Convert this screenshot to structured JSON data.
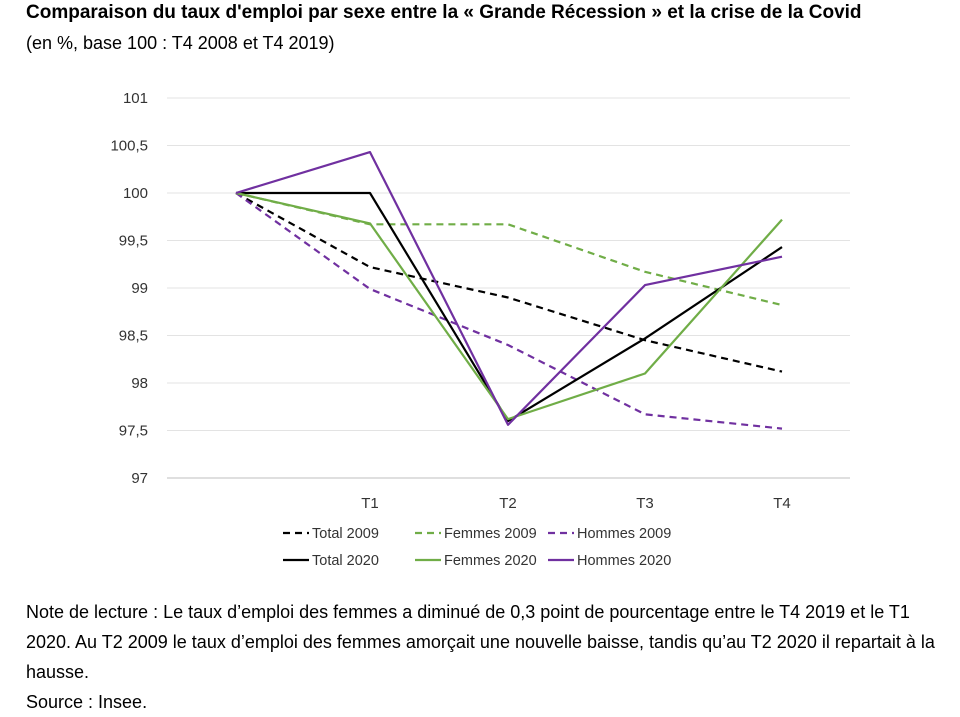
{
  "title": "Comparaison du taux d'emploi par sexe entre la « Grande Récession » et la crise de la Covid",
  "subtitle": "(en %, base 100 : T4 2008 et T4 2019)",
  "note": "Note de lecture : Le taux d’emploi des femmes a diminué de 0,3 point de pourcentage entre le T4 2019 et le T1 2020. Au T2 2009 le taux d’emploi des femmes amorçait une nouvelle baisse, tandis qu’au T2 2020 il repartait à la hausse.",
  "source": "Source : Insee.",
  "chart_data": {
    "type": "line",
    "categories": [
      "",
      "T1",
      "T2",
      "T3",
      "T4"
    ],
    "ylim": [
      97,
      101
    ],
    "yticks": [
      {
        "value": 97,
        "label": "97"
      },
      {
        "value": 97.5,
        "label": "97,5"
      },
      {
        "value": 98,
        "label": "98"
      },
      {
        "value": 98.5,
        "label": "98,5"
      },
      {
        "value": 99,
        "label": "99"
      },
      {
        "value": 99.5,
        "label": "99,5"
      },
      {
        "value": 100,
        "label": "100"
      },
      {
        "value": 100.5,
        "label": "100,5"
      },
      {
        "value": 101,
        "label": "101"
      }
    ],
    "grid": true,
    "legend_position": "bottom",
    "series": [
      {
        "name": "Total 2009",
        "color": "#000000",
        "dashed": true,
        "values": [
          100,
          99.22,
          98.9,
          98.45,
          98.12
        ]
      },
      {
        "name": "Femmes 2009",
        "color": "#70ad47",
        "dashed": true,
        "values": [
          100,
          99.67,
          99.67,
          99.17,
          98.82
        ]
      },
      {
        "name": "Hommes 2009",
        "color": "#7030a0",
        "dashed": true,
        "values": [
          100,
          98.99,
          98.4,
          97.67,
          97.52
        ]
      },
      {
        "name": "Total 2020",
        "color": "#000000",
        "dashed": false,
        "values": [
          100,
          100,
          97.6,
          98.47,
          99.43
        ]
      },
      {
        "name": "Femmes 2020",
        "color": "#70ad47",
        "dashed": false,
        "values": [
          100,
          99.68,
          97.62,
          98.1,
          99.72
        ]
      },
      {
        "name": "Hommes 2020",
        "color": "#7030a0",
        "dashed": false,
        "values": [
          100,
          100.43,
          97.56,
          99.03,
          99.33
        ]
      }
    ]
  }
}
